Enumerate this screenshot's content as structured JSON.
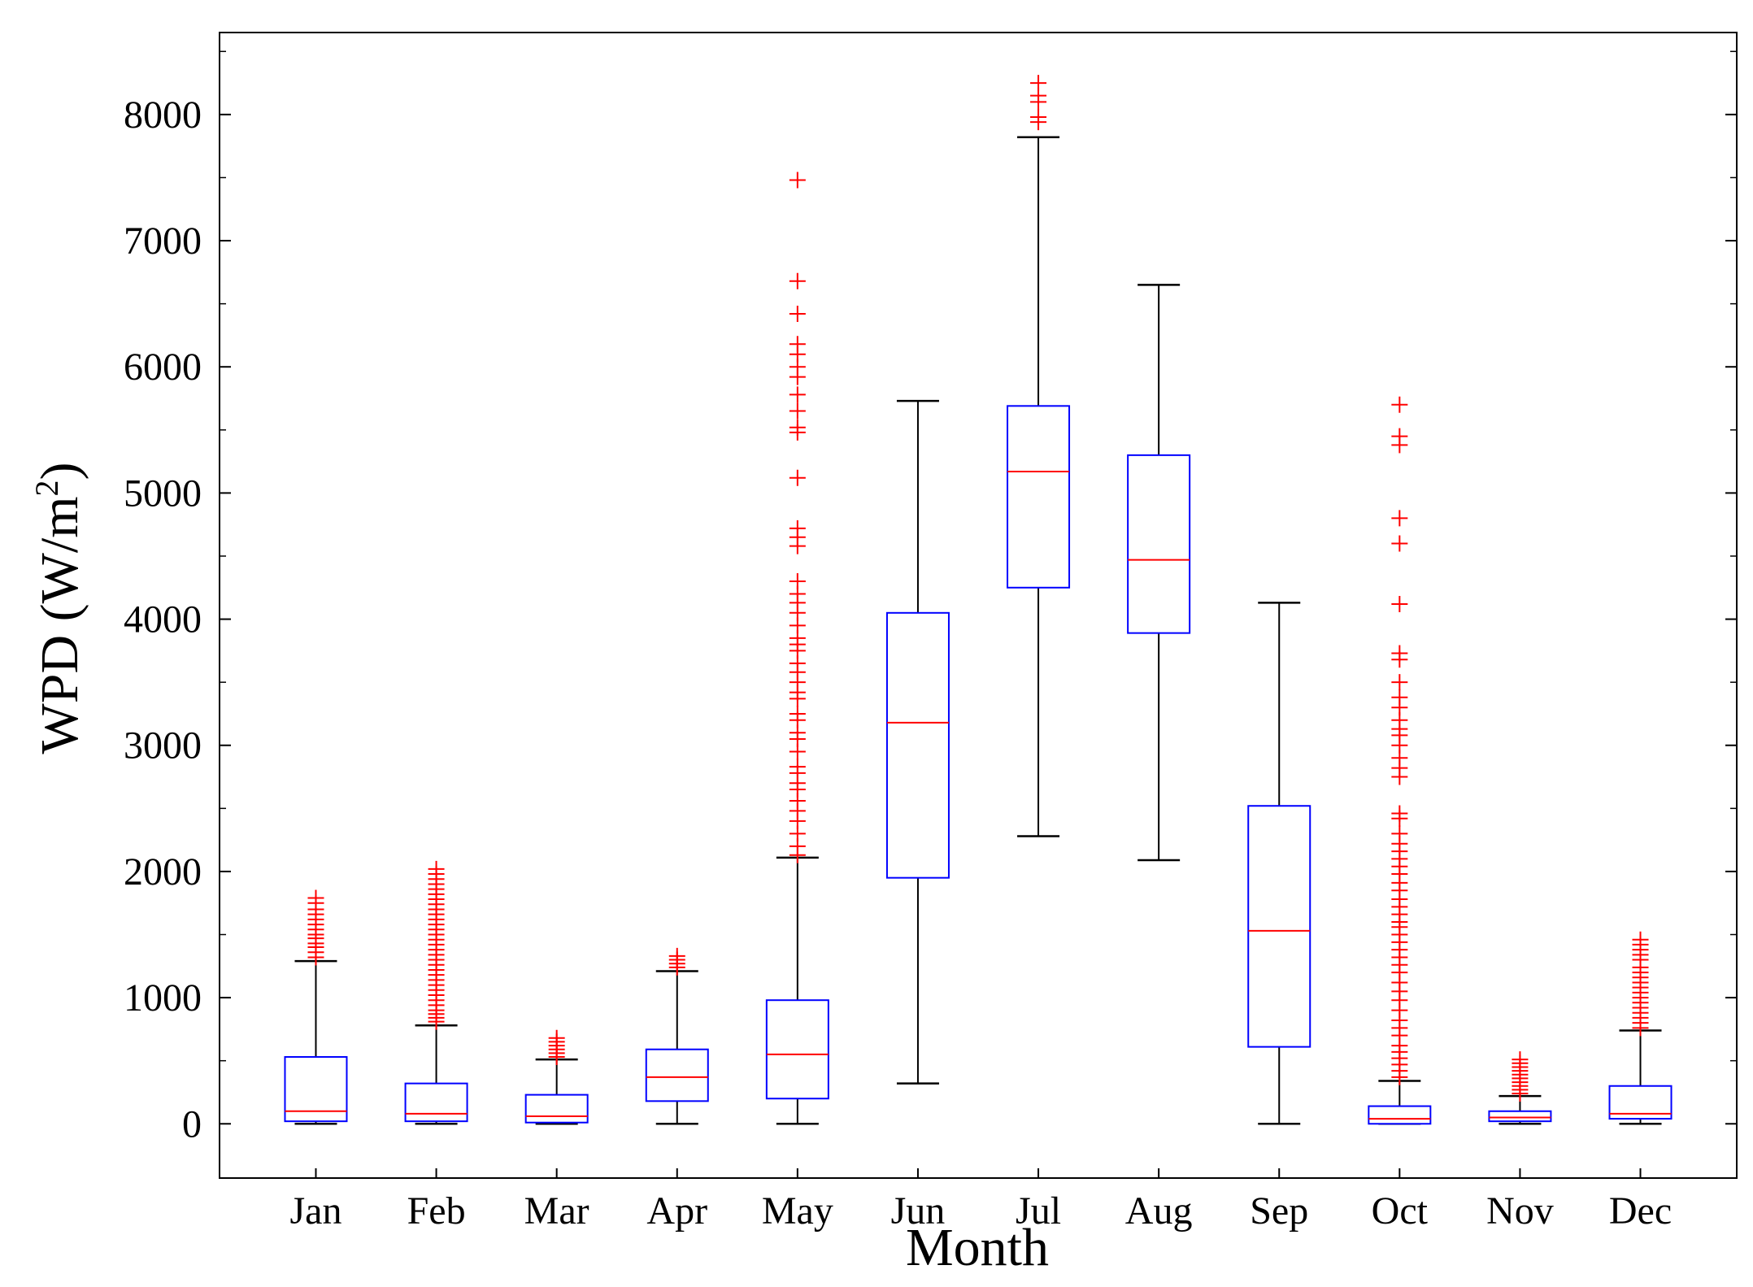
{
  "chart_data": {
    "type": "box",
    "title": "",
    "xlabel": "Month",
    "ylabel": "WPD (W/m²)",
    "ylabel_main": "WPD (W/m",
    "ylabel_sup": "2",
    "ylabel_end": ")",
    "ylim": [
      -430,
      8650
    ],
    "yticks": [
      0,
      1000,
      2000,
      3000,
      4000,
      5000,
      6000,
      7000,
      8000
    ],
    "ytick_labels": [
      "0",
      "1000",
      "2000",
      "3000",
      "4000",
      "5000",
      "6000",
      "7000",
      "8000"
    ],
    "categories": [
      "Jan",
      "Feb",
      "Mar",
      "Apr",
      "May",
      "Jun",
      "Jul",
      "Aug",
      "Sep",
      "Oct",
      "Nov",
      "Dec"
    ],
    "colors": {
      "box": "#0000ff",
      "median": "#ff0000",
      "whisker": "#000000",
      "outlier": "#ff0000"
    },
    "boxes": [
      {
        "month": "Jan",
        "low": 0,
        "q1": 20,
        "median": 100,
        "q3": 530,
        "high": 1290,
        "outliers": [
          1320,
          1360,
          1400,
          1430,
          1470,
          1500,
          1540,
          1580,
          1620,
          1660,
          1700,
          1750,
          1790
        ]
      },
      {
        "month": "Feb",
        "low": 0,
        "q1": 20,
        "median": 80,
        "q3": 320,
        "high": 780,
        "outliers": [
          810,
          840,
          870,
          900,
          940,
          980,
          1020,
          1060,
          1100,
          1140,
          1180,
          1220,
          1260,
          1300,
          1340,
          1380,
          1420,
          1460,
          1500,
          1540,
          1580,
          1620,
          1660,
          1700,
          1740,
          1780,
          1820,
          1860,
          1900,
          1940,
          1980,
          2020
        ]
      },
      {
        "month": "Mar",
        "low": 0,
        "q1": 10,
        "median": 60,
        "q3": 230,
        "high": 510,
        "outliers": [
          530,
          560,
          590,
          620,
          650,
          680
        ]
      },
      {
        "month": "Apr",
        "low": 0,
        "q1": 180,
        "median": 370,
        "q3": 590,
        "high": 1210,
        "outliers": [
          1240,
          1270,
          1300,
          1330
        ]
      },
      {
        "month": "May",
        "low": 0,
        "q1": 200,
        "median": 550,
        "q3": 980,
        "high": 2110,
        "outliers": [
          2130,
          2200,
          2300,
          2400,
          2480,
          2560,
          2650,
          2700,
          2780,
          2830,
          2950,
          3050,
          3100,
          3200,
          3250,
          3370,
          3420,
          3500,
          3580,
          3650,
          3750,
          3800,
          3850,
          3950,
          4050,
          4130,
          4200,
          4300,
          4580,
          4650,
          4720,
          5120,
          5480,
          5520,
          5650,
          5780,
          5920,
          6000,
          6100,
          6180,
          6420,
          6680,
          7480
        ]
      },
      {
        "month": "Jun",
        "low": 320,
        "q1": 1950,
        "median": 3180,
        "q3": 4050,
        "high": 5730,
        "outliers": []
      },
      {
        "month": "Jul",
        "low": 2280,
        "q1": 4250,
        "median": 5170,
        "q3": 5690,
        "high": 7820,
        "outliers": [
          7940,
          7980,
          8100,
          8150,
          8250
        ]
      },
      {
        "month": "Aug",
        "low": 2090,
        "q1": 3890,
        "median": 4470,
        "q3": 5300,
        "high": 6650,
        "outliers": []
      },
      {
        "month": "Sep",
        "low": 0,
        "q1": 610,
        "median": 1530,
        "q3": 2520,
        "high": 4130,
        "outliers": []
      },
      {
        "month": "Oct",
        "low": 0,
        "q1": 0,
        "median": 40,
        "q3": 140,
        "high": 340,
        "outliers": [
          370,
          420,
          470,
          520,
          570,
          620,
          700,
          760,
          820,
          900,
          980,
          1050,
          1120,
          1200,
          1260,
          1320,
          1380,
          1440,
          1500,
          1560,
          1600,
          1660,
          1720,
          1780,
          1850,
          1910,
          1980,
          2040,
          2100,
          2160,
          2220,
          2300,
          2420,
          2460,
          2750,
          2820,
          2900,
          3000,
          3080,
          3130,
          3200,
          3300,
          3380,
          3500,
          3680,
          3730,
          4120,
          4600,
          4800,
          5380,
          5450,
          5700
        ]
      },
      {
        "month": "Nov",
        "low": 0,
        "q1": 20,
        "median": 50,
        "q3": 100,
        "high": 220,
        "outliers": [
          240,
          270,
          300,
          330,
          360,
          390,
          420,
          450,
          480,
          510
        ]
      },
      {
        "month": "Dec",
        "low": 0,
        "q1": 40,
        "median": 80,
        "q3": 300,
        "high": 740,
        "outliers": [
          760,
          800,
          840,
          880,
          920,
          960,
          1000,
          1040,
          1080,
          1120,
          1160,
          1200,
          1240,
          1300,
          1340,
          1380,
          1420,
          1460
        ]
      }
    ],
    "grid": false,
    "legend": "none"
  }
}
